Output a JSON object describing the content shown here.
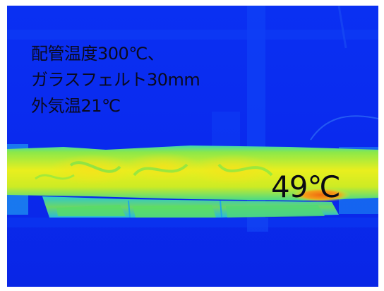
{
  "image": {
    "description_kind": "thermal-camera-image",
    "palette": {
      "background": "#0a2cf0",
      "cool": "#1d7cf2",
      "mid": "#25d6c9",
      "warm_green": "#5be35a",
      "warm": "#e8f020",
      "hot": "#f08a10"
    }
  },
  "caption": {
    "line1": "配管温度300℃、",
    "line2": "ガラスフェルト30mm",
    "line3": "外気温21℃"
  },
  "readout": {
    "temperature": "49℃"
  }
}
